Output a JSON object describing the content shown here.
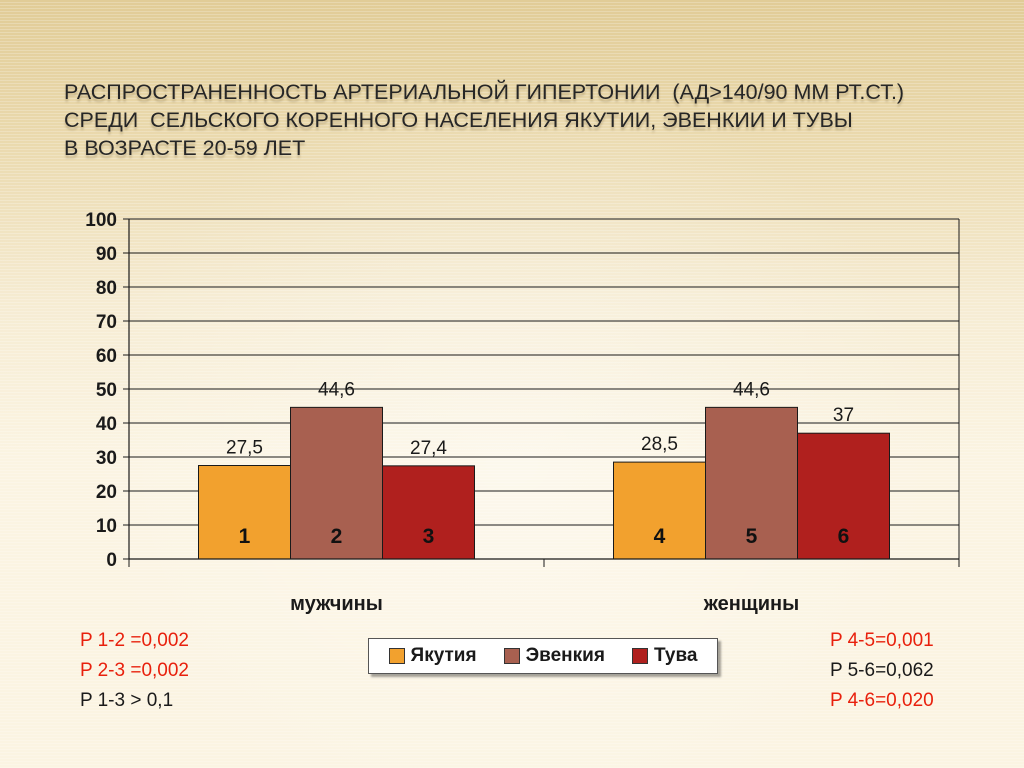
{
  "slide": {
    "title_lines": [
      "Распространенность артериальной гипертонии  (АД>140/90 мм рт.ст.)",
      "среди  сельского коренного населения Якутии, Эвенкии и Тувы",
      "в возрасте 20-59 лет"
    ]
  },
  "chart_data": {
    "type": "bar",
    "categories": [
      "мужчины",
      "женщины"
    ],
    "series": [
      {
        "name": "Якутия",
        "values": [
          27.5,
          28.5
        ],
        "color": "#f2a12e",
        "value_labels": [
          "27,5",
          "28,5"
        ],
        "bar_numbers": [
          "1",
          "4"
        ]
      },
      {
        "name": "Эвенкия",
        "values": [
          44.6,
          44.6
        ],
        "color": "#a86050",
        "value_labels": [
          "44,6",
          "44,6"
        ],
        "bar_numbers": [
          "2",
          "5"
        ]
      },
      {
        "name": "Тува",
        "values": [
          27.4,
          37
        ],
        "color": "#b0201e",
        "value_labels": [
          "27,4",
          "37"
        ],
        "bar_numbers": [
          "3",
          "6"
        ]
      }
    ],
    "yticks": [
      "0",
      "10",
      "20",
      "30",
      "40",
      "50",
      "60",
      "70",
      "80",
      "90",
      "100"
    ],
    "ylim": [
      0,
      100
    ],
    "grid": true,
    "legend_position": "bottom"
  },
  "p_values": {
    "left": [
      {
        "text": "P 1-2 =0,002",
        "color": "red"
      },
      {
        "text": "P 2-3 =0,002",
        "color": "red"
      },
      {
        "text": "P 1-3 > 0,1",
        "color": "black"
      }
    ],
    "right": [
      {
        "text": "P 4-5=0,001",
        "color": "red"
      },
      {
        "text": "P 5-6=0,062",
        "color": "black"
      },
      {
        "text": "P 4-6=0,020",
        "color": "red"
      }
    ]
  }
}
